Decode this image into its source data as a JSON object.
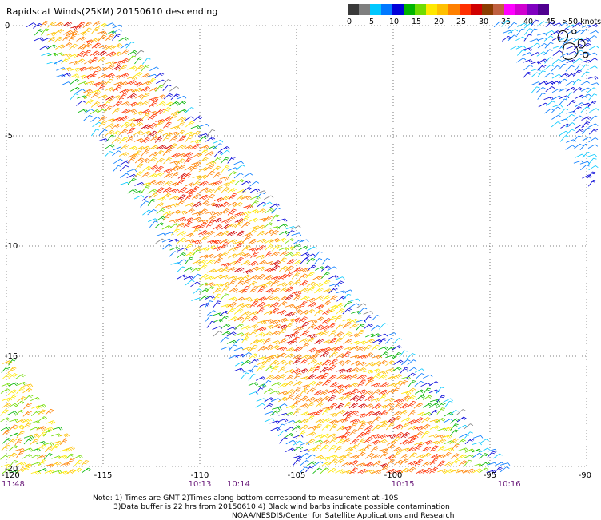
{
  "title": "Rapidscat Winds(25KM) 20150610 descending",
  "legend": {
    "ticks": [
      "0",
      "5",
      "10",
      "15",
      "20",
      "25",
      "30",
      "35",
      "40",
      "45"
    ],
    "last_label": ">50 knots",
    "colors": [
      "#3a3a3a",
      "#7f7f7f",
      "#00c8ff",
      "#0078ff",
      "#0000d8",
      "#00b400",
      "#70dc00",
      "#ffe800",
      "#ffc000",
      "#ff8000",
      "#ff3000",
      "#d00000",
      "#8a3c00",
      "#c06040",
      "#ff00ff",
      "#d000d0",
      "#8000c0",
      "#500090"
    ]
  },
  "map": {
    "lon_range": [
      -120,
      -90
    ],
    "lat_range": [
      -20,
      0
    ],
    "lon_ticks": [
      "-120",
      "-115",
      "-110",
      "-105",
      "-100",
      "-95",
      "-90"
    ],
    "lat_ticks": [
      "0",
      "-5",
      "-10",
      "-15",
      "-20"
    ],
    "time_labels": [
      {
        "lon": -120,
        "text": "11:48"
      },
      {
        "lon": -110,
        "text": "10:13"
      },
      {
        "lon": -108,
        "text": "10:14"
      },
      {
        "lon": -99.5,
        "text": "10:15"
      },
      {
        "lon": -94,
        "text": "10:16"
      }
    ]
  },
  "notes": [
    "Note: 1) Times are GMT 2)Times along bottom correspond to measurement at -10S",
    "3)Data buffer is 22 hrs from 20150610 4) Black wind barbs indicate possible contamination",
    "NOAA/NESDIS/Center for Satellite Applications and Research"
  ]
}
